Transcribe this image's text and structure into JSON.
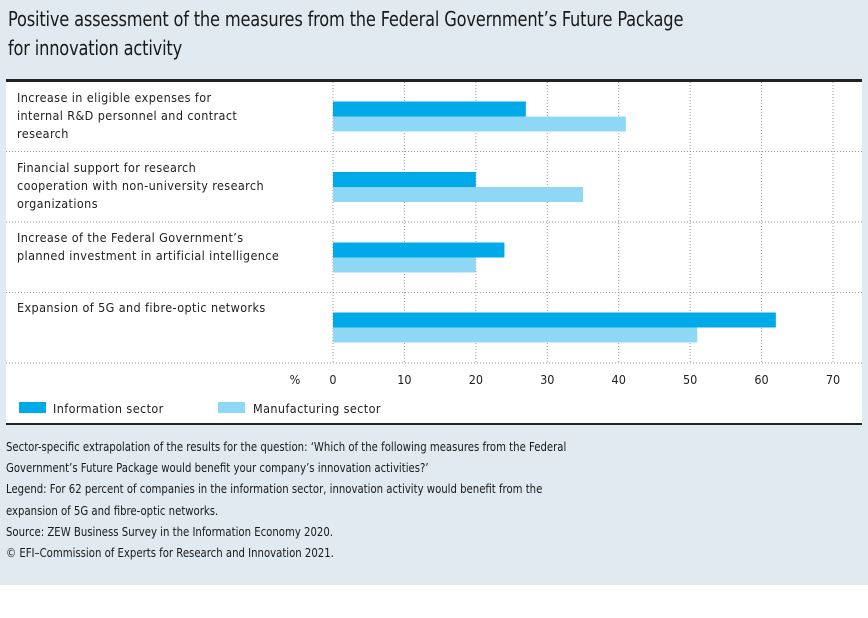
{
  "title": {
    "line1": "Positive assessment of the measures from the Federal Government’s Future Package",
    "line2": "for innovation activity"
  },
  "chart_data": {
    "type": "bar",
    "orientation": "horizontal",
    "title": "Positive assessment of the measures from the Federal Government’s Future Package for innovation activity",
    "categories": [
      [
        "Increase in eligible expenses for",
        "internal R&D personnel and contract",
        "research"
      ],
      [
        "Financial support for research",
        "cooperation with non-university research",
        "organizations"
      ],
      [
        "Increase of the Federal Government’s",
        "planned investment in artificial intelligence"
      ],
      [
        "Expansion of 5G and fibre-optic networks"
      ]
    ],
    "series": [
      {
        "name": "Information sector",
        "color": "#00a9e8",
        "values": [
          27,
          20,
          24,
          62
        ]
      },
      {
        "name": "Manufacturing sector",
        "color": "#8fd8f5",
        "values": [
          41,
          35,
          20,
          51
        ]
      }
    ],
    "xlabel": "%",
    "ylabel": "",
    "xlim": [
      0,
      70
    ],
    "xticks": [
      "0",
      "10",
      "20",
      "30",
      "40",
      "50",
      "60",
      "70"
    ],
    "grid": true,
    "legend_position": "bottom-left"
  },
  "notes": [
    "Sector-specific extrapolation of the results for the question: ‘Which of the following measures from the Federal",
    "Government’s Future Package would benefit your company’s innovation activities?’",
    "Legend: For 62 percent of companies in the information sector, innovation activity would benefit from the",
    "expansion of 5G and fibre-optic networks.",
    "Source: ZEW Business Survey in the Information Economy 2020.",
    "© EFI–Commission of Experts for Research and Innovation 2021."
  ]
}
